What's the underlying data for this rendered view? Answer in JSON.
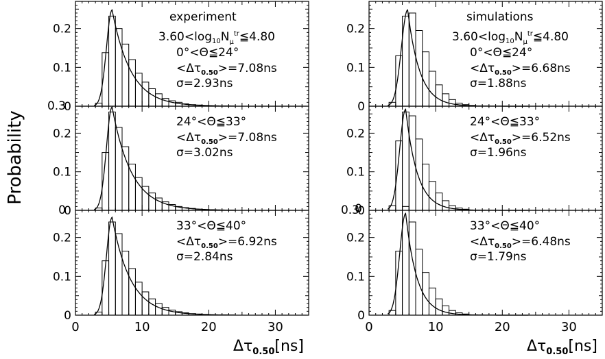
{
  "figure": {
    "ylabel": "Probability",
    "xlabel_main": "Δτ",
    "xlabel_sub": "0.50",
    "xlabel_unit": "[ns]"
  },
  "chart_data": [
    {
      "type": "bar",
      "column": "left",
      "row": 0,
      "header": "experiment",
      "annotation": [
        "3.60<log",
        "10",
        "N",
        "μ",
        "tr",
        "≦4.80"
      ],
      "theta_range": "0°<Θ≦24°",
      "mean_label": "<Δτ",
      "mean_sub": "0.50",
      "mean_value": ">=7.08ns",
      "sigma_label": "σ=2.93ns",
      "xlim": [
        0,
        35
      ],
      "ylim": [
        0,
        0.27
      ],
      "x_ticks": [
        0,
        10,
        20,
        30
      ],
      "y_ticks": [
        0,
        0.1,
        0.2
      ],
      "y_tick_labels": [
        "0",
        "0.1",
        "0.2"
      ],
      "bin_width": 1,
      "bins_start": [
        3,
        4,
        5,
        6,
        7,
        8,
        9,
        10,
        11,
        12,
        13,
        14,
        15,
        16,
        17,
        18,
        19,
        20
      ],
      "values": [
        0.008,
        0.138,
        0.232,
        0.2,
        0.16,
        0.12,
        0.085,
        0.062,
        0.045,
        0.032,
        0.02,
        0.014,
        0.01,
        0.006,
        0.004,
        0.003,
        0.002,
        0.001
      ],
      "fit_peak": 0.248,
      "fit_mode": 5.5,
      "fit_sigma_left": 0.85,
      "fit_tail": 2.8
    },
    {
      "type": "bar",
      "column": "left",
      "row": 1,
      "theta_range": "24°<Θ≦33°",
      "mean_label": "<Δτ",
      "mean_sub": "0.50",
      "mean_value": ">=7.08ns",
      "sigma_label": "σ=3.02ns",
      "xlim": [
        0,
        35
      ],
      "ylim": [
        0,
        0.27
      ],
      "x_ticks": [
        0,
        10,
        20,
        30
      ],
      "y_ticks": [
        0,
        0.1,
        0.2
      ],
      "y_tick_labels": [
        "0",
        "0.1",
        "0.2"
      ],
      "bin_width": 1,
      "bins_start": [
        3,
        4,
        5,
        6,
        7,
        8,
        9,
        10,
        11,
        12,
        13,
        14,
        15,
        16,
        17,
        18,
        19,
        20
      ],
      "values": [
        0.006,
        0.15,
        0.255,
        0.215,
        0.165,
        0.12,
        0.085,
        0.062,
        0.045,
        0.032,
        0.022,
        0.015,
        0.01,
        0.007,
        0.005,
        0.003,
        0.002,
        0.001
      ],
      "fit_peak": 0.268,
      "fit_mode": 5.5,
      "fit_sigma_left": 0.85,
      "fit_tail": 2.9
    },
    {
      "type": "bar",
      "column": "left",
      "row": 2,
      "theta_range": "33°<Θ≦40°",
      "mean_label": "<Δτ",
      "mean_sub": "0.50",
      "mean_value": ">=6.92ns",
      "sigma_label": "σ=2.84ns",
      "xlim": [
        0,
        35
      ],
      "ylim": [
        0,
        0.27
      ],
      "x_ticks": [
        0,
        10,
        20,
        30
      ],
      "x_tick_labels": [
        "0",
        "10",
        "20",
        "30"
      ],
      "y_ticks": [
        0,
        0.1,
        0.2
      ],
      "y_tick_labels": [
        "0",
        "0.1",
        "0.2"
      ],
      "bin_width": 1,
      "bins_start": [
        3,
        4,
        5,
        6,
        7,
        8,
        9,
        10,
        11,
        12,
        13,
        14,
        15,
        16,
        17,
        18,
        19,
        20
      ],
      "values": [
        0.008,
        0.14,
        0.24,
        0.21,
        0.165,
        0.12,
        0.085,
        0.06,
        0.042,
        0.03,
        0.02,
        0.013,
        0.009,
        0.006,
        0.004,
        0.003,
        0.002,
        0.001
      ],
      "fit_peak": 0.252,
      "fit_mode": 5.5,
      "fit_sigma_left": 0.85,
      "fit_tail": 2.75
    },
    {
      "type": "bar",
      "column": "right",
      "row": 0,
      "header": "simulations",
      "annotation": [
        "3.60<log",
        "10",
        "N",
        "μ",
        "tr",
        "≦4.80"
      ],
      "theta_range": "0°<Θ≦24°",
      "mean_label": "<Δτ",
      "mean_sub": "0.50",
      "mean_value": ">=6.68ns",
      "sigma_label": "σ=1.88ns",
      "xlim": [
        0,
        35
      ],
      "ylim": [
        0,
        0.27
      ],
      "x_ticks": [
        0,
        10,
        20,
        30
      ],
      "y_ticks": [
        0,
        0.1,
        0.2
      ],
      "y_tick_labels": [
        "0",
        "0.1",
        "0.2"
      ],
      "bin_width": 1,
      "bins_start": [
        3,
        4,
        5,
        6,
        7,
        8,
        9,
        10,
        11,
        12,
        13,
        14,
        15
      ],
      "values": [
        0.01,
        0.13,
        0.232,
        0.24,
        0.195,
        0.14,
        0.09,
        0.055,
        0.032,
        0.017,
        0.008,
        0.004,
        0.002
      ],
      "fit_peak": 0.248,
      "fit_mode": 5.8,
      "fit_sigma_left": 0.95,
      "fit_tail": 1.8
    },
    {
      "type": "bar",
      "column": "right",
      "row": 1,
      "theta_range": "24°<Θ≦33°",
      "mean_label": "<Δτ",
      "mean_sub": "0.50",
      "mean_value": ">=6.52ns",
      "sigma_label": "σ=1.96ns",
      "xlim": [
        0,
        35
      ],
      "ylim": [
        0,
        0.27
      ],
      "x_ticks": [
        0,
        10,
        20,
        30
      ],
      "y_ticks": [
        0,
        0.1,
        0.2
      ],
      "y_tick_labels": [
        "0",
        "0.1",
        "0.2"
      ],
      "bin_width": 1,
      "bins_start": [
        3,
        4,
        5,
        6,
        7,
        8,
        9,
        10,
        11,
        12,
        13,
        14
      ],
      "values": [
        0.012,
        0.18,
        0.255,
        0.245,
        0.185,
        0.12,
        0.075,
        0.045,
        0.025,
        0.012,
        0.006,
        0.003
      ],
      "fit_peak": 0.262,
      "fit_mode": 5.5,
      "fit_sigma_left": 0.9,
      "fit_tail": 1.75
    },
    {
      "type": "bar",
      "column": "right",
      "row": 2,
      "theta_range": "33°<Θ≦40°",
      "mean_label": "<Δτ",
      "mean_sub": "0.50",
      "mean_value": ">=6.48ns",
      "sigma_label": "σ=1.79ns",
      "xlim": [
        0,
        35
      ],
      "ylim": [
        0,
        0.27
      ],
      "x_ticks": [
        0,
        10,
        20,
        30
      ],
      "x_tick_labels": [
        "0",
        "10",
        "20",
        "30"
      ],
      "y_ticks": [
        0,
        0.1,
        0.2
      ],
      "y_tick_labels": [
        "0",
        "0.1",
        "0.2"
      ],
      "bin_width": 1,
      "bins_start": [
        3,
        4,
        5,
        6,
        7,
        8,
        9,
        10,
        11,
        12,
        13,
        14
      ],
      "values": [
        0.012,
        0.165,
        0.28,
        0.24,
        0.17,
        0.11,
        0.07,
        0.042,
        0.024,
        0.012,
        0.006,
        0.003
      ],
      "fit_peak": 0.262,
      "fit_mode": 5.5,
      "fit_sigma_left": 0.9,
      "fit_tail": 1.7
    }
  ],
  "overlap_labels": [
    "0.3",
    "0",
    "0.3",
    "0"
  ]
}
